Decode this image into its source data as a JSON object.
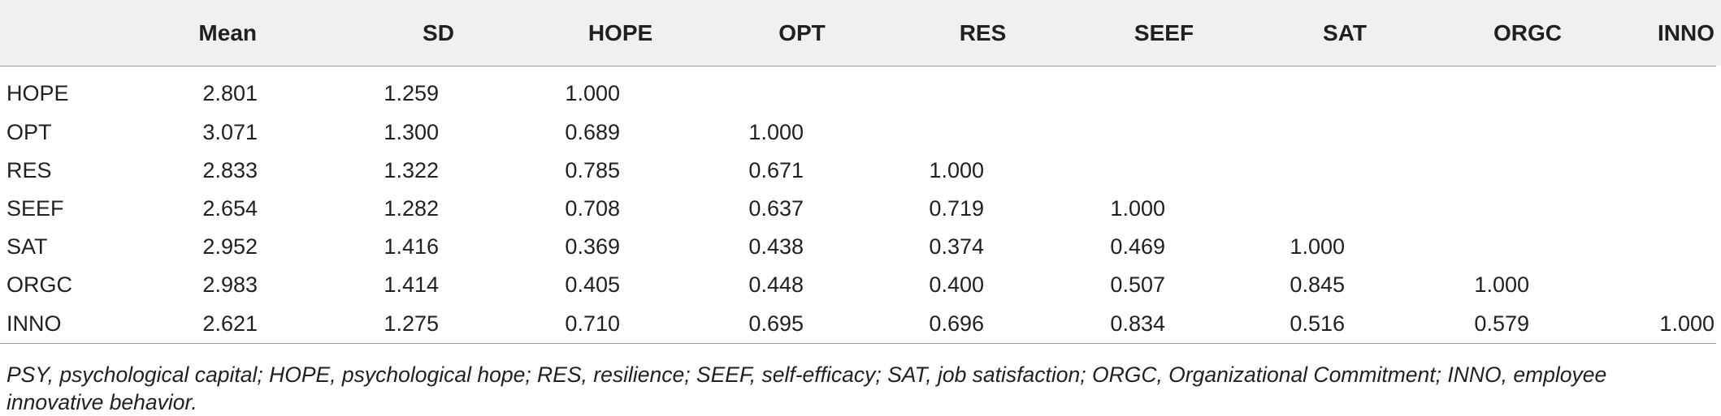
{
  "table": {
    "columns": [
      "",
      "Mean",
      "SD",
      "HOPE",
      "OPT",
      "RES",
      "SEEF",
      "SAT",
      "ORGC",
      "INNO"
    ],
    "rows": [
      {
        "label": "HOPE",
        "cells": [
          "2.801",
          "1.259",
          "1.000",
          "",
          "",
          "",
          "",
          "",
          ""
        ]
      },
      {
        "label": "OPT",
        "cells": [
          "3.071",
          "1.300",
          "0.689",
          "1.000",
          "",
          "",
          "",
          "",
          ""
        ]
      },
      {
        "label": "RES",
        "cells": [
          "2.833",
          "1.322",
          "0.785",
          "0.671",
          "1.000",
          "",
          "",
          "",
          ""
        ]
      },
      {
        "label": "SEEF",
        "cells": [
          "2.654",
          "1.282",
          "0.708",
          "0.637",
          "0.719",
          "1.000",
          "",
          "",
          ""
        ]
      },
      {
        "label": "SAT",
        "cells": [
          "2.952",
          "1.416",
          "0.369",
          "0.438",
          "0.374",
          "0.469",
          "1.000",
          "",
          ""
        ]
      },
      {
        "label": "ORGC",
        "cells": [
          "2.983",
          "1.414",
          "0.405",
          "0.448",
          "0.400",
          "0.507",
          "0.845",
          "1.000",
          ""
        ]
      },
      {
        "label": "INNO",
        "cells": [
          "2.621",
          "1.275",
          "0.710",
          "0.695",
          "0.696",
          "0.834",
          "0.516",
          "0.579",
          "1.000"
        ]
      }
    ]
  },
  "footnote": {
    "line1": "PSY, psychological capital; HOPE, psychological hope; RES, resilience; SEEF, self-efficacy; SAT, job satisfaction; ORGC, Organizational Commitment; INNO, employee",
    "line2": "innovative behavior."
  },
  "colors": {
    "header_bg": "#eef0f1",
    "text": "#231f20",
    "rule": "#9a9a9a"
  }
}
